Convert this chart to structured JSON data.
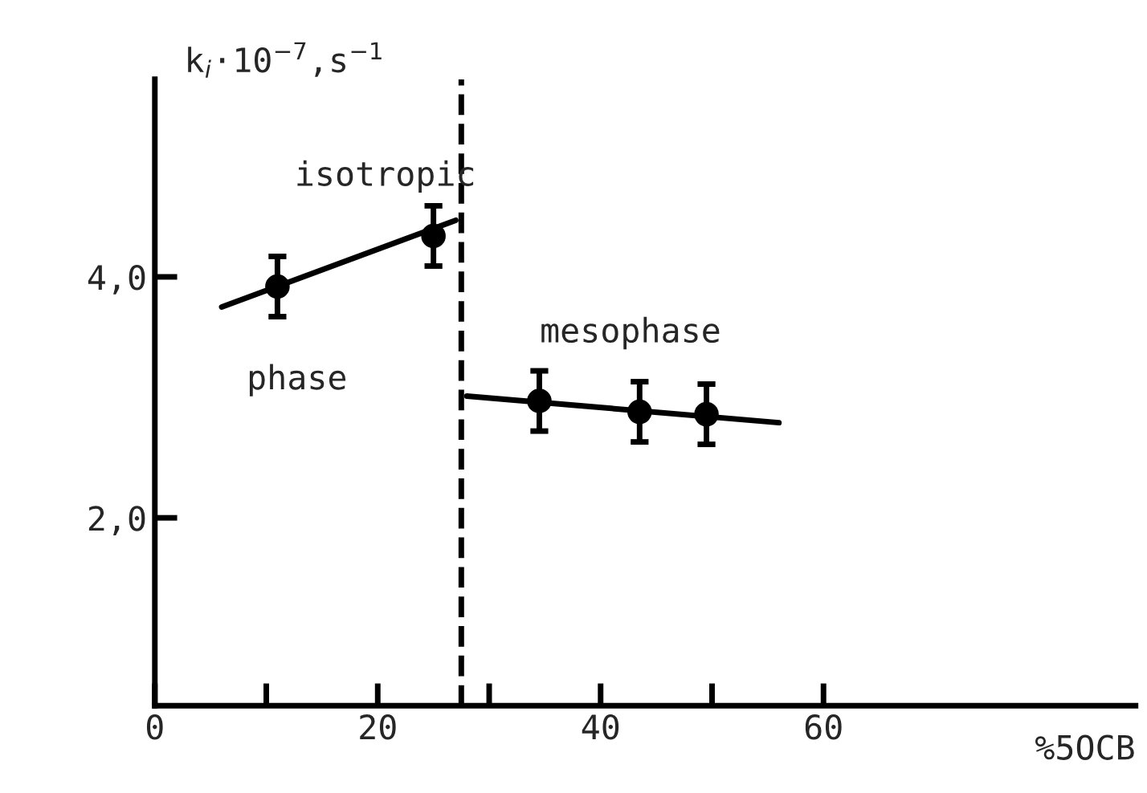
{
  "chart_data": {
    "type": "scatter",
    "xlabel": "%5OCB",
    "ylabel": "k$_{i}$·10$^{−7}$,s$^{−1}$",
    "xlim": [
      0,
      88
    ],
    "ylim": [
      0.44,
      5.64
    ],
    "xticks": [
      0,
      {
        "value": 10,
        "label": null
      },
      20,
      {
        "value": 30,
        "label": null
      },
      40,
      {
        "value": 50,
        "label": null
      },
      60
    ],
    "yticks": [
      {
        "value": 2,
        "label": "2,0"
      },
      {
        "value": 4,
        "label": "4,0"
      }
    ],
    "grid": false,
    "series": [
      {
        "marker": "circle",
        "color": "#000000",
        "x": [
          11,
          25,
          34.5,
          43.5,
          49.5
        ],
        "values": [
          3.92,
          4.34,
          2.97,
          2.88,
          2.86
        ],
        "errors": [
          0.25,
          0.25,
          0.25,
          0.25,
          0.25
        ]
      },
      {
        "type": "line",
        "color": "#000000",
        "x": [
          6,
          27
        ],
        "values": [
          3.75,
          4.47
        ]
      },
      {
        "type": "line",
        "color": "#000000",
        "x": [
          28,
          56
        ],
        "values": [
          3.01,
          2.79
        ]
      }
    ],
    "ref_lines": [
      {
        "axis": "x",
        "value": 27.5,
        "color": "#000000",
        "line_style": "dashed"
      }
    ],
    "annotations": [
      "isotropic",
      "phase",
      "mesophase"
    ]
  }
}
